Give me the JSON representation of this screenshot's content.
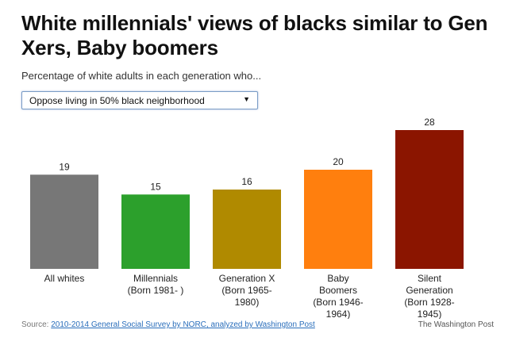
{
  "header": {
    "title": "White millennials' views of blacks similar to Gen Xers, Baby boomers",
    "subtitle": "Percentage of white adults in each generation who..."
  },
  "selector": {
    "selected": "Oppose living in 50% black neighborhood",
    "arrow_icon": "triangle-down-icon"
  },
  "chart_data": {
    "type": "bar",
    "categories": [
      [
        "All whites"
      ],
      [
        "Millennials",
        "(Born 1981- )"
      ],
      [
        "Generation X",
        "(Born 1965-",
        "1980)"
      ],
      [
        "Baby",
        "Boomers",
        "(Born 1946-",
        "1964)"
      ],
      [
        "Silent",
        "Generation",
        "(Born 1928-",
        "1945)"
      ]
    ],
    "values": [
      19,
      15,
      16,
      20,
      28
    ],
    "colors": [
      "#777777",
      "#2ca02c",
      "#b08a00",
      "#ff7f0e",
      "#8b1500"
    ],
    "ylim": [
      0,
      28
    ]
  },
  "footer": {
    "source_prefix": "Source: ",
    "source_link": "2010-2014 General Social Survey by NORC, analyzed by Washington Post",
    "brand": "The Washington Post"
  }
}
